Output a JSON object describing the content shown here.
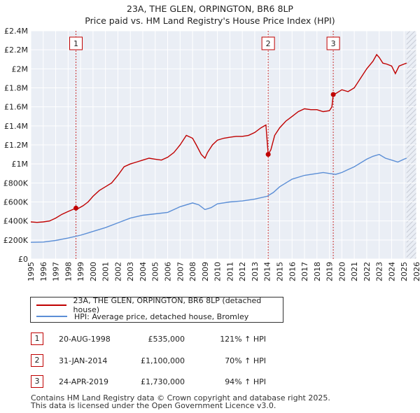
{
  "chart_data": {
    "type": "line",
    "title": "23A, THE GLEN, ORPINGTON, BR6 8LP",
    "subtitle": "Price paid vs. HM Land Registry's House Price Index (HPI)",
    "xlim": [
      1995,
      2026
    ],
    "ylim": [
      0,
      2400000
    ],
    "x_ticks": [
      "1995",
      "1996",
      "1997",
      "1998",
      "1999",
      "2000",
      "2001",
      "2002",
      "2003",
      "2004",
      "2005",
      "2006",
      "2007",
      "2008",
      "2009",
      "2010",
      "2011",
      "2012",
      "2013",
      "2014",
      "2015",
      "2016",
      "2017",
      "2018",
      "2019",
      "2020",
      "2021",
      "2022",
      "2023",
      "2024",
      "2025",
      "2026"
    ],
    "y_ticks": [
      {
        "value": 0,
        "label": "£0"
      },
      {
        "value": 200000,
        "label": "£200K"
      },
      {
        "value": 400000,
        "label": "£400K"
      },
      {
        "value": 600000,
        "label": "£600K"
      },
      {
        "value": 800000,
        "label": "£800K"
      },
      {
        "value": 1000000,
        "label": "£1M"
      },
      {
        "value": 1200000,
        "label": "£1.2M"
      },
      {
        "value": 1400000,
        "label": "£1.4M"
      },
      {
        "value": 1600000,
        "label": "£1.6M"
      },
      {
        "value": 1800000,
        "label": "£1.8M"
      },
      {
        "value": 2000000,
        "label": "£2M"
      },
      {
        "value": 2200000,
        "label": "£2.2M"
      },
      {
        "value": 2400000,
        "label": "£2.4M"
      }
    ],
    "grid": true,
    "legend_position": "below",
    "series": [
      {
        "name": "23A, THE GLEN, ORPINGTON, BR6 8LP (detached house)",
        "color": "#c00000",
        "x": [
          1995.0,
          1995.5,
          1996.0,
          1996.5,
          1997.0,
          1997.5,
          1998.0,
          1998.63,
          1998.8,
          1999.2,
          1999.6,
          2000.0,
          2000.5,
          2001.0,
          2001.5,
          2002.0,
          2002.5,
          2003.0,
          2003.5,
          2004.0,
          2004.5,
          2005.0,
          2005.5,
          2006.0,
          2006.5,
          2007.0,
          2007.5,
          2008.0,
          2008.3,
          2008.7,
          2009.0,
          2009.2,
          2009.6,
          2010.0,
          2010.5,
          2011.0,
          2011.5,
          2012.0,
          2012.5,
          2013.0,
          2013.5,
          2013.9,
          2014.08,
          2014.3,
          2014.6,
          2015.0,
          2015.5,
          2016.0,
          2016.5,
          2017.0,
          2017.5,
          2018.0,
          2018.5,
          2019.0,
          2019.2,
          2019.31,
          2019.5,
          2020.0,
          2020.5,
          2021.0,
          2021.5,
          2022.0,
          2022.5,
          2022.8,
          2023.0,
          2023.3,
          2023.6,
          2024.0,
          2024.3,
          2024.6,
          2025.0,
          2025.2
        ],
        "values": [
          390000,
          385000,
          390000,
          400000,
          430000,
          470000,
          500000,
          535000,
          530000,
          560000,
          600000,
          660000,
          720000,
          760000,
          800000,
          880000,
          970000,
          1000000,
          1020000,
          1040000,
          1060000,
          1050000,
          1040000,
          1070000,
          1120000,
          1200000,
          1300000,
          1270000,
          1200000,
          1100000,
          1060000,
          1120000,
          1200000,
          1250000,
          1270000,
          1280000,
          1290000,
          1290000,
          1300000,
          1330000,
          1380000,
          1410000,
          1100000,
          1150000,
          1300000,
          1380000,
          1450000,
          1500000,
          1550000,
          1580000,
          1570000,
          1570000,
          1550000,
          1560000,
          1600000,
          1730000,
          1740000,
          1780000,
          1760000,
          1800000,
          1900000,
          2000000,
          2080000,
          2150000,
          2120000,
          2060000,
          2050000,
          2030000,
          1950000,
          2030000,
          2050000,
          2060000
        ]
      },
      {
        "name": "HPI: Average price, detached house, Bromley",
        "color": "#5b8ed6",
        "x": [
          1995.0,
          1996.0,
          1997.0,
          1998.0,
          1999.0,
          2000.0,
          2001.0,
          2002.0,
          2003.0,
          2004.0,
          2005.0,
          2006.0,
          2007.0,
          2008.0,
          2008.5,
          2009.0,
          2009.5,
          2010.0,
          2011.0,
          2012.0,
          2013.0,
          2014.0,
          2014.5,
          2015.0,
          2015.5,
          2016.0,
          2017.0,
          2018.0,
          2018.5,
          2019.0,
          2019.5,
          2020.0,
          2020.5,
          2021.0,
          2022.0,
          2022.5,
          2023.0,
          2023.5,
          2024.0,
          2024.5,
          2025.0,
          2025.2
        ],
        "values": [
          175000,
          178000,
          195000,
          220000,
          250000,
          290000,
          330000,
          380000,
          430000,
          460000,
          475000,
          490000,
          550000,
          590000,
          570000,
          520000,
          540000,
          580000,
          600000,
          610000,
          630000,
          660000,
          700000,
          760000,
          800000,
          840000,
          880000,
          900000,
          910000,
          900000,
          890000,
          910000,
          940000,
          970000,
          1050000,
          1080000,
          1100000,
          1060000,
          1040000,
          1020000,
          1050000,
          1060000
        ]
      }
    ],
    "sales": [
      {
        "marker": "1",
        "x": 1998.63,
        "price": 535000,
        "date": "20-AUG-1998",
        "price_label": "£535,000",
        "hpi_label": "121% ↑ HPI"
      },
      {
        "marker": "2",
        "x": 2014.08,
        "price": 1100000,
        "date": "31-JAN-2014",
        "price_label": "£1,100,000",
        "hpi_label": "70% ↑ HPI"
      },
      {
        "marker": "3",
        "x": 2019.31,
        "price": 1730000,
        "date": "24-APR-2019",
        "price_label": "£1,730,000",
        "hpi_label": "94% ↑ HPI"
      }
    ],
    "future_hatch_from": 2025.2
  },
  "footer": {
    "line1": "Contains HM Land Registry data © Crown copyright and database right 2025.",
    "line2": "This data is licensed under the Open Government Licence v3.0."
  }
}
